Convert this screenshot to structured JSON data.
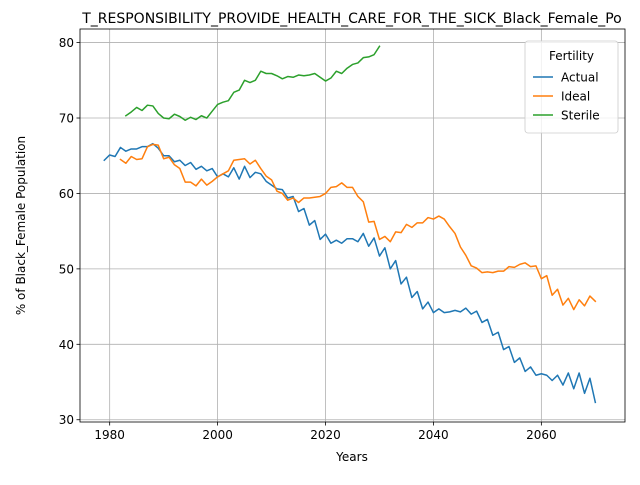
{
  "chart_data": {
    "type": "line",
    "title": "T_RESPONSIBILITY_PROVIDE_HEALTH_CARE_FOR_THE_SICK_Black_Female_Po",
    "xlabel": "Years",
    "ylabel": "% of Black_Female Population",
    "xlim": [
      1974.5,
      2075.5
    ],
    "ylim": [
      29.7,
      81.8
    ],
    "xticks": [
      1980,
      2000,
      2020,
      2040,
      2060
    ],
    "yticks": [
      30,
      40,
      50,
      60,
      70,
      80
    ],
    "grid": true,
    "legend": {
      "title": "Fertility",
      "placement": "top-right"
    },
    "series": [
      {
        "name": "Actual",
        "color": "#1f77b4",
        "x": [
          1979,
          1980,
          1981,
          1982,
          1983,
          1984,
          1985,
          1986,
          1987,
          1988,
          1989,
          1990,
          1991,
          1992,
          1993,
          1994,
          1995,
          1996,
          1997,
          1998,
          1999,
          2000,
          2001,
          2002,
          2003,
          2004,
          2005,
          2006,
          2007,
          2008,
          2009,
          2010,
          2011,
          2012,
          2013,
          2014,
          2015,
          2016,
          2017,
          2018,
          2019,
          2020,
          2021,
          2022,
          2023,
          2024,
          2025,
          2026,
          2027,
          2028,
          2029,
          2030,
          2031,
          2032,
          2033,
          2034,
          2035,
          2036,
          2037,
          2038,
          2039,
          2040,
          2041,
          2042,
          2043,
          2044,
          2045,
          2046,
          2047,
          2048,
          2049,
          2050,
          2051,
          2052,
          2053,
          2054,
          2055,
          2056,
          2057,
          2058,
          2059,
          2060,
          2061,
          2062,
          2063,
          2064,
          2065,
          2066,
          2067,
          2068,
          2069,
          2070
        ],
        "values": [
          64.4,
          65.1,
          64.9,
          66.1,
          65.6,
          65.9,
          65.9,
          66.2,
          66.2,
          66.6,
          66.0,
          65.0,
          65.0,
          64.2,
          64.4,
          63.7,
          64.1,
          63.2,
          63.6,
          63.0,
          63.3,
          62.2,
          62.6,
          62.2,
          63.4,
          61.9,
          63.6,
          62.1,
          62.8,
          62.6,
          61.6,
          61.1,
          60.6,
          60.5,
          59.4,
          59.6,
          57.6,
          58.0,
          55.8,
          56.4,
          53.9,
          54.6,
          53.4,
          53.8,
          53.4,
          54.0,
          54.0,
          53.6,
          54.7,
          53.0,
          54.1,
          51.7,
          52.8,
          50.0,
          51.1,
          48.0,
          48.9,
          46.2,
          47.0,
          44.7,
          45.6,
          44.2,
          44.7,
          44.2,
          44.3,
          44.5,
          44.3,
          44.8,
          44.0,
          44.4,
          42.9,
          43.3,
          41.2,
          41.6,
          39.3,
          39.7,
          37.6,
          38.2,
          36.4,
          37.0,
          35.9,
          36.1,
          35.9,
          35.2,
          35.9,
          34.6,
          36.2,
          34.1,
          36.2,
          33.5,
          35.5,
          32.3
        ]
      },
      {
        "name": "Ideal",
        "color": "#ff7f0e",
        "x": [
          1982,
          1983,
          1984,
          1985,
          1986,
          1987,
          1988,
          1989,
          1990,
          1991,
          1992,
          1993,
          1994,
          1995,
          1996,
          1997,
          1998,
          1999,
          2000,
          2001,
          2002,
          2003,
          2004,
          2005,
          2006,
          2007,
          2008,
          2009,
          2010,
          2011,
          2012,
          2013,
          2014,
          2015,
          2016,
          2017,
          2018,
          2019,
          2020,
          2021,
          2022,
          2023,
          2024,
          2025,
          2026,
          2027,
          2028,
          2029,
          2030,
          2031,
          2032,
          2033,
          2034,
          2035,
          2036,
          2037,
          2038,
          2039,
          2040,
          2041,
          2042,
          2043,
          2044,
          2045,
          2046,
          2047,
          2048,
          2049,
          2050,
          2051,
          2052,
          2053,
          2054,
          2055,
          2056,
          2057,
          2058,
          2059,
          2060,
          2061,
          2062,
          2063,
          2064,
          2065,
          2066,
          2067,
          2068,
          2069,
          2070
        ],
        "values": [
          64.5,
          64.0,
          64.9,
          64.5,
          64.6,
          66.2,
          66.5,
          66.4,
          64.6,
          64.8,
          63.8,
          63.3,
          61.5,
          61.5,
          61.0,
          61.9,
          61.1,
          61.6,
          62.2,
          62.6,
          63.0,
          64.4,
          64.5,
          64.6,
          63.9,
          64.4,
          63.3,
          62.3,
          61.8,
          60.3,
          60.0,
          59.1,
          59.4,
          58.8,
          59.4,
          59.4,
          59.5,
          59.6,
          60.0,
          60.8,
          60.9,
          61.4,
          60.8,
          60.8,
          59.6,
          58.9,
          56.2,
          56.3,
          53.9,
          54.3,
          53.6,
          54.9,
          54.8,
          55.9,
          55.5,
          56.1,
          56.1,
          56.8,
          56.6,
          57.0,
          56.6,
          55.6,
          54.7,
          52.9,
          51.8,
          50.4,
          50.1,
          49.5,
          49.6,
          49.5,
          49.7,
          49.7,
          50.3,
          50.2,
          50.6,
          50.8,
          50.3,
          50.4,
          48.7,
          49.1,
          46.5,
          47.3,
          45.2,
          46.1,
          44.6,
          45.9,
          45.1,
          46.4,
          45.7
        ]
      },
      {
        "name": "Sterile",
        "color": "#2ca02c",
        "x": [
          1983,
          1984,
          1985,
          1986,
          1987,
          1988,
          1989,
          1990,
          1991,
          1992,
          1993,
          1994,
          1995,
          1996,
          1997,
          1998,
          1999,
          2000,
          2001,
          2002,
          2003,
          2004,
          2005,
          2006,
          2007,
          2008,
          2009,
          2010,
          2011,
          2012,
          2013,
          2014,
          2015,
          2016,
          2017,
          2018,
          2019,
          2020,
          2021,
          2022,
          2023,
          2024,
          2025,
          2026,
          2027,
          2028,
          2029,
          2030
        ],
        "values": [
          70.3,
          70.8,
          71.4,
          71.0,
          71.7,
          71.6,
          70.6,
          70.0,
          69.9,
          70.5,
          70.2,
          69.7,
          70.1,
          69.8,
          70.3,
          70.0,
          70.9,
          71.8,
          72.1,
          72.3,
          73.4,
          73.7,
          75.0,
          74.7,
          75.0,
          76.2,
          75.9,
          75.9,
          75.6,
          75.2,
          75.5,
          75.4,
          75.7,
          75.6,
          75.7,
          75.9,
          75.4,
          74.9,
          75.3,
          76.2,
          75.9,
          76.6,
          77.1,
          77.3,
          78.0,
          78.1,
          78.4,
          79.5
        ]
      }
    ]
  }
}
